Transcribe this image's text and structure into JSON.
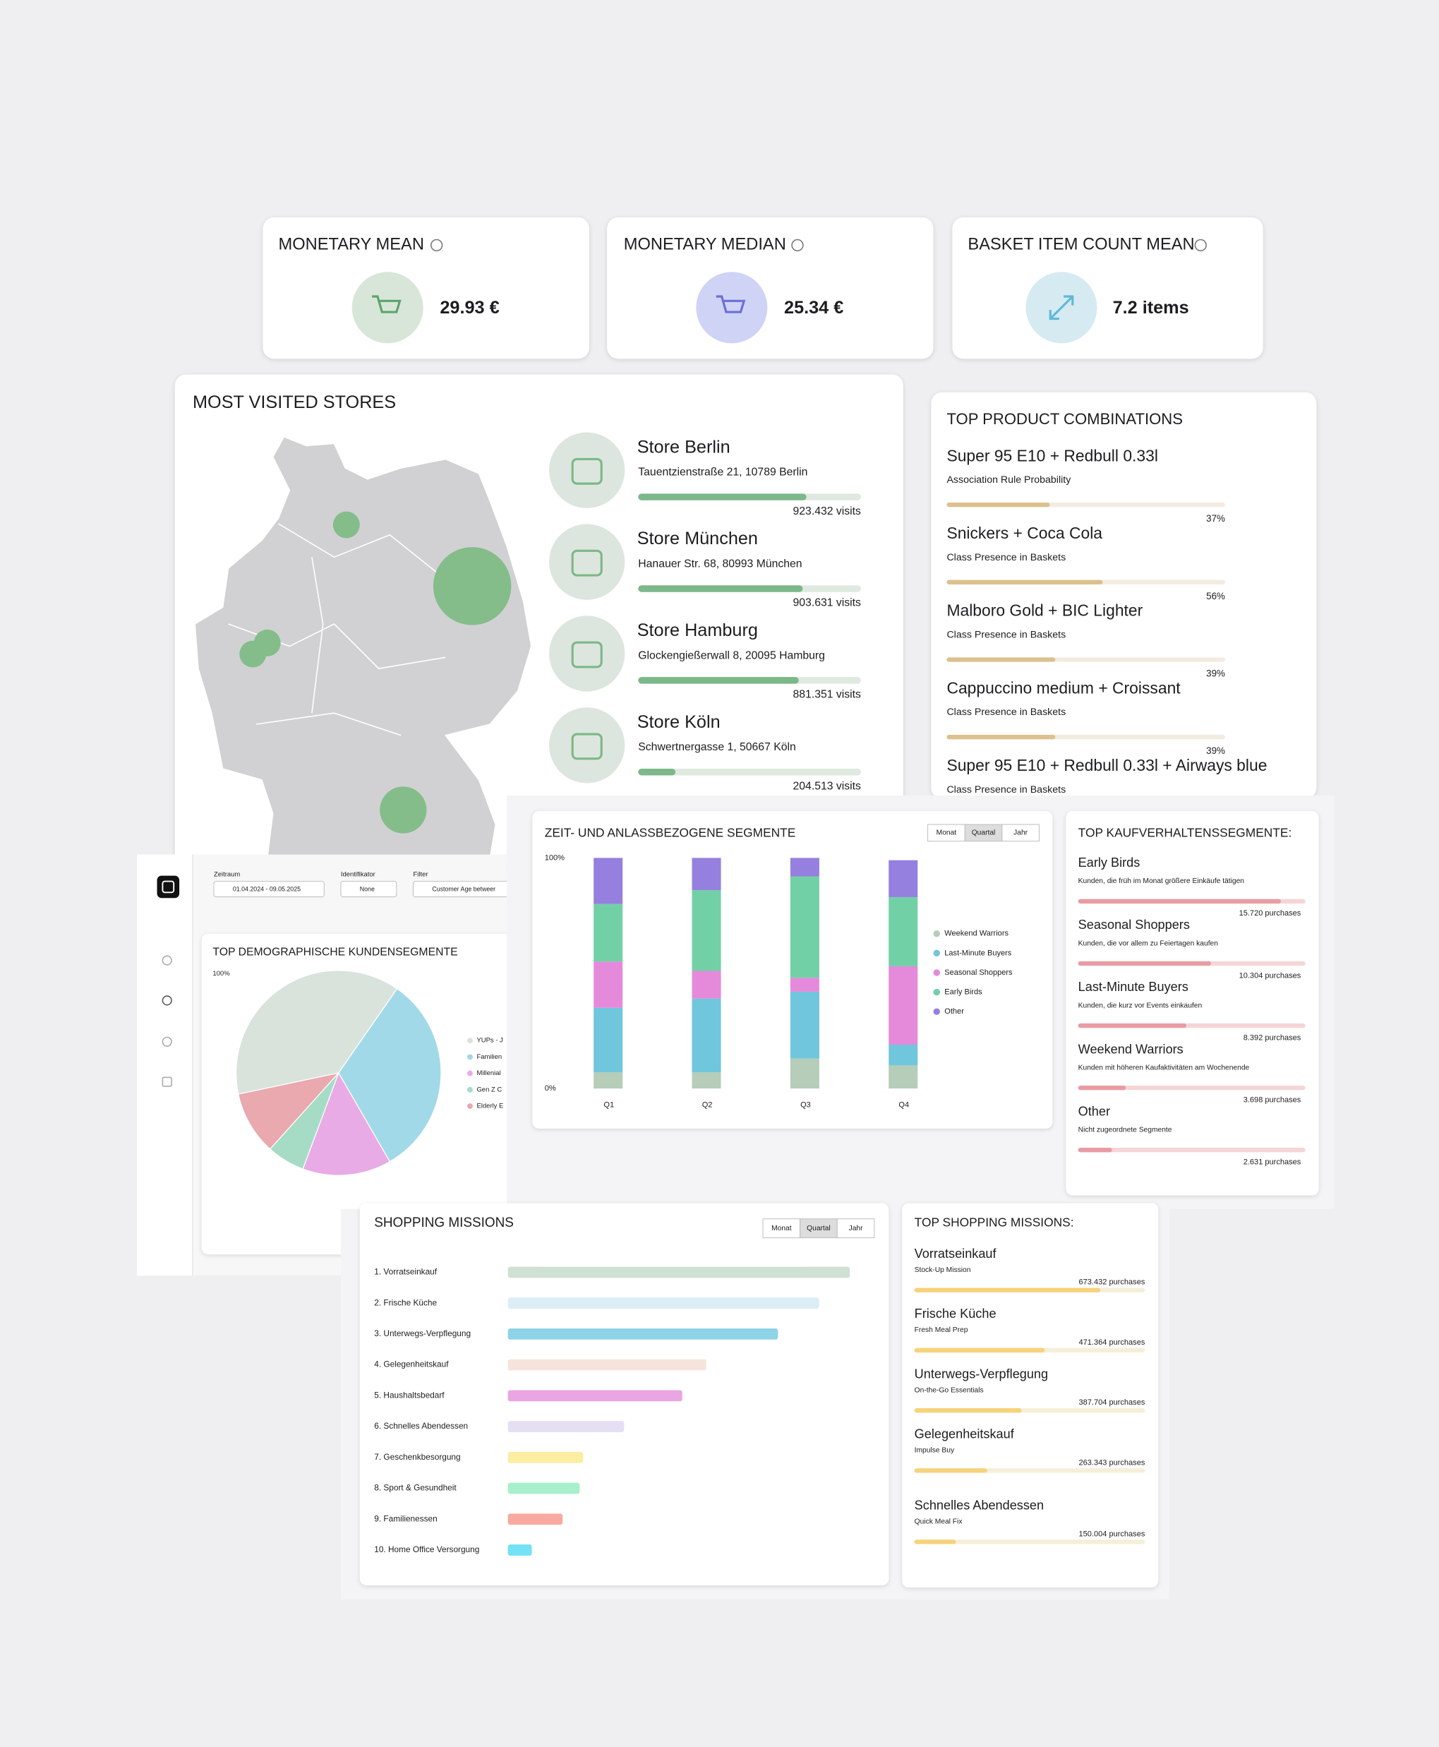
{
  "kpis": [
    {
      "title": "MONETARY MEAN",
      "value": "29.93 €"
    },
    {
      "title": "MONETARY MEDIAN",
      "value": "25.34 €"
    },
    {
      "title": "BASKET ITEM COUNT MEAN",
      "value": "7.2 items"
    }
  ],
  "most_visited_stores": {
    "title": "MOST VISITED STORES",
    "stores": [
      {
        "name": "Store Berlin",
        "address": "Tauentzienstraße 21, 10789 Berlin",
        "visits": 923432,
        "visits_label": "923.432 visits"
      },
      {
        "name": "Store München",
        "address": "Hanauer Str. 68, 80993 München",
        "visits": 903631,
        "visits_label": "903.631 visits"
      },
      {
        "name": "Store Hamburg",
        "address": "Glockengießerwall 8, 20095 Hamburg",
        "visits": 881351,
        "visits_label": "881.351 visits"
      },
      {
        "name": "Store Köln",
        "address": "Schwertnergasse 1, 50667 Köln",
        "visits": 204513,
        "visits_label": "204.513 visits"
      }
    ]
  },
  "top_product_combinations": {
    "title": "TOP PRODUCT COMBINATIONS",
    "items": [
      {
        "name": "Super 95 E10 + Redbull 0.33l",
        "subtitle": "Association Rule Probability",
        "value": 37,
        "value_label": "37%"
      },
      {
        "name": "Snickers + Coca Cola",
        "subtitle": "Class Presence in Baskets",
        "value": 56,
        "value_label": "56%"
      },
      {
        "name": "Malboro Gold + BIC Lighter",
        "subtitle": "Class Presence in Baskets",
        "value": 39,
        "value_label": "39%"
      },
      {
        "name": "Cappuccino medium + Croissant",
        "subtitle": "Class Presence in Baskets",
        "value": 39,
        "value_label": "39%"
      },
      {
        "name": "Super 95 E10 + Redbull 0.33l + Airways blue",
        "subtitle": "Class Presence in Baskets"
      }
    ]
  },
  "filters": [
    {
      "label": "Zeitraum",
      "value": "01.04.2024 - 09.05.2025"
    },
    {
      "label": "Identifikator",
      "value": "None"
    },
    {
      "label": "Filter",
      "value": "Customer Age betweer"
    }
  ],
  "demographics": {
    "title": "TOP DEMOGRAPHISCHE KUNDENSEGMENTE",
    "chart_data": {
      "type": "pie",
      "axis_label": "100%",
      "categories": [
        "YUPs - J",
        "Familien",
        "Millenial",
        "Gen Z C",
        "Elderly E"
      ],
      "values": [
        38,
        32,
        14,
        6,
        10
      ],
      "colors": [
        "#d9e3dc",
        "#a2d9e8",
        "#e8abe6",
        "#a6dcc6",
        "#e9a9ae"
      ]
    }
  },
  "segments": {
    "title": "ZEIT- UND ANLASSBEZOGENE SEGMENTE",
    "toggle": [
      "Monat",
      "Quartal",
      "Jahr"
    ],
    "active": 1,
    "chart_data": {
      "type": "bar",
      "stacked": true,
      "categories": [
        "Q1",
        "Q2",
        "Q3",
        "Q4"
      ],
      "series": [
        {
          "name": "Weekend Warriors",
          "color": "#b5cdb9",
          "values": [
            7,
            7,
            13,
            10
          ]
        },
        {
          "name": "Last-Minute Buyers",
          "color": "#70c6dc",
          "values": [
            28,
            32,
            29,
            9
          ]
        },
        {
          "name": "Seasonal Shoppers",
          "color": "#e58adb",
          "values": [
            20,
            12,
            6,
            34
          ]
        },
        {
          "name": "Early Birds",
          "color": "#72d0a6",
          "values": [
            25,
            35,
            44,
            30
          ]
        },
        {
          "name": "Other",
          "color": "#9580df",
          "values": [
            20,
            14,
            8,
            16
          ]
        }
      ],
      "ylim": [
        0,
        100
      ],
      "yticks": [
        {
          "value": 0,
          "label": "0%"
        },
        {
          "value": 100,
          "label": "100%"
        }
      ]
    }
  },
  "behavior_segments": {
    "title": "TOP KAUFVERHALTENSSEGMENTE:",
    "items": [
      {
        "name": "Early Birds",
        "description": "Kunden, die früh im Monat größere Einkäufe tätigen",
        "value": 15720,
        "value_label": "15.720 purchases"
      },
      {
        "name": "Seasonal Shoppers",
        "description": "Kunden, die vor allem zu Feiertagen kaufen",
        "value": 10304,
        "value_label": "10.304 purchases"
      },
      {
        "name": "Last-Minute Buyers",
        "description": "Kunden, die kurz vor Events einkaufen",
        "value": 8392,
        "value_label": "8.392 purchases"
      },
      {
        "name": "Weekend Warriors",
        "description": "Kunden mit höheren Kaufaktivitäten am Wochenende",
        "value": 3698,
        "value_label": "3.698 purchases"
      },
      {
        "name": "Other",
        "description": "Nicht zugeordnete Segmente",
        "value": 2631,
        "value_label": "2.631 purchases"
      }
    ]
  },
  "shopping_missions": {
    "title": "SHOPPING MISSIONS",
    "toggle": [
      "Monat",
      "Quartal",
      "Jahr"
    ],
    "active": 1,
    "chart_data": {
      "type": "bar",
      "horizontal": true,
      "categories": [
        "1. Vorratseinkauf",
        "2. Frische Küche",
        "3. Unterwegs-Verpflegung",
        "4. Gelegenheitskauf",
        "5. Haushaltsbedarf",
        "6. Schnelles Abendessen",
        "7. Geschenkbesorgung",
        "8. Sport & Gesundheit",
        "9. Familienessen",
        "10. Home Office Versorgung"
      ],
      "values": [
        100,
        91,
        79,
        58,
        51,
        34,
        22,
        21,
        16,
        7
      ],
      "colors": [
        "#cfe0d4",
        "#dbeef6",
        "#8fd3e6",
        "#f6e4dc",
        "#e9a6e2",
        "#e6def3",
        "#fbeea0",
        "#a8f0cc",
        "#f9a9a0",
        "#74e1f5"
      ]
    }
  },
  "top_shopping_missions": {
    "title": "TOP SHOPPING MISSIONS:",
    "items": [
      {
        "name": "Vorratseinkauf",
        "subtitle": "Stock-Up Mission",
        "value": 673432,
        "value_label": "673.432 purchases"
      },
      {
        "name": "Frische Küche",
        "subtitle": "Fresh Meal Prep",
        "value": 471364,
        "value_label": "471.364 purchases"
      },
      {
        "name": "Unterwegs-Verpflegung",
        "subtitle": "On-the-Go Essentials",
        "value": 387704,
        "value_label": "387.704 purchases"
      },
      {
        "name": "Gelegenheitskauf",
        "subtitle": "Impulse Buy",
        "value": 263343,
        "value_label": "263.343 purchases"
      },
      {
        "name": "Schnelles Abendessen",
        "subtitle": "Quick Meal Fix",
        "value": 150004,
        "value_label": "150.004 purchases"
      }
    ]
  }
}
